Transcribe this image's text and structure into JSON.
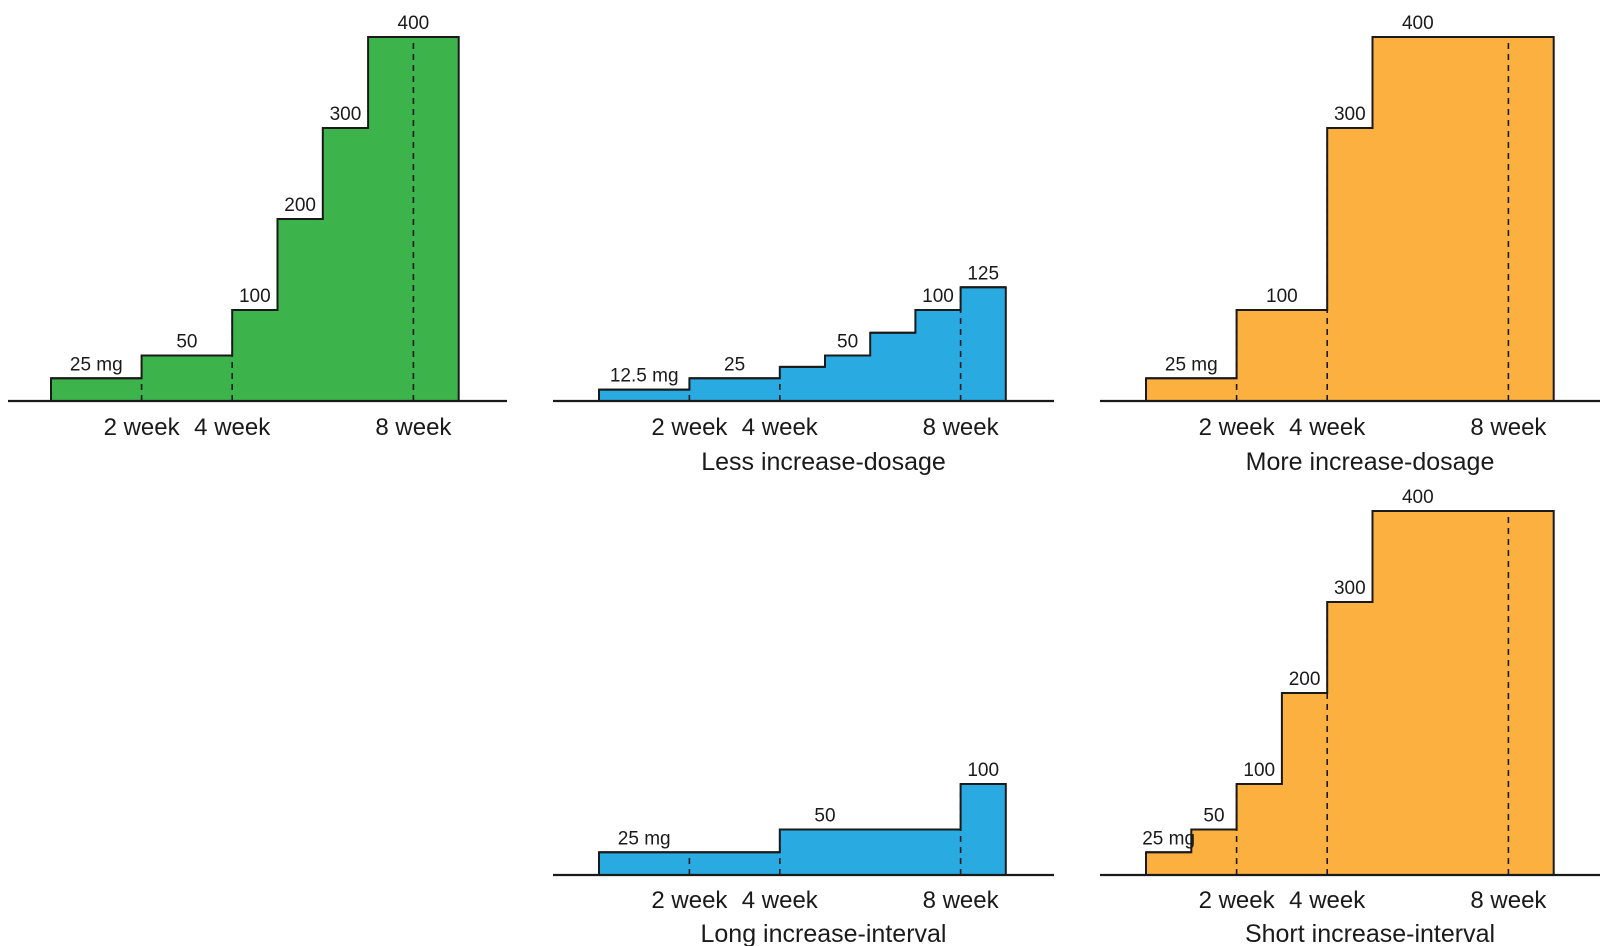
{
  "colors": {
    "green": "#3cb44b",
    "blue": "#29abe2",
    "orange": "#fbb040",
    "outline": "#1a1a1a"
  },
  "chart_data": [
    {
      "id": "reference",
      "type": "step-area",
      "title": "",
      "xlabel": "",
      "ylabel": "",
      "color": "#3cb44b",
      "ticks": [
        {
          "x": 2,
          "label": "2 week"
        },
        {
          "x": 4,
          "label": "4 week"
        },
        {
          "x": 8,
          "label": "8 week"
        }
      ],
      "xlim": [
        -1,
        10
      ],
      "ylim": [
        0,
        400
      ],
      "steps": [
        {
          "x0": 0,
          "x1": 2,
          "y": 25,
          "label": "25 mg"
        },
        {
          "x0": 2,
          "x1": 4,
          "y": 50,
          "label": "50"
        },
        {
          "x0": 4,
          "x1": 5,
          "y": 100,
          "label": "100"
        },
        {
          "x0": 5,
          "x1": 6,
          "y": 200,
          "label": "200"
        },
        {
          "x0": 6,
          "x1": 7,
          "y": 300,
          "label": "300"
        },
        {
          "x0": 7,
          "x1": 9,
          "y": 400,
          "label": "400"
        }
      ]
    },
    {
      "id": "less-dosage",
      "type": "step-area",
      "title": "Less increase-dosage",
      "xlabel": "",
      "ylabel": "",
      "color": "#29abe2",
      "ticks": [
        {
          "x": 2,
          "label": "2 week"
        },
        {
          "x": 4,
          "label": "4 week"
        },
        {
          "x": 8,
          "label": "8 week"
        }
      ],
      "xlim": [
        -1,
        10
      ],
      "ylim": [
        0,
        400
      ],
      "steps": [
        {
          "x0": 0,
          "x1": 2,
          "y": 12.5,
          "label": "12.5 mg"
        },
        {
          "x0": 2,
          "x1": 4,
          "y": 25,
          "label": "25"
        },
        {
          "x0": 4,
          "x1": 5,
          "y": 37.5,
          "label": ""
        },
        {
          "x0": 5,
          "x1": 6,
          "y": 50,
          "label": "50"
        },
        {
          "x0": 6,
          "x1": 7,
          "y": 75,
          "label": ""
        },
        {
          "x0": 7,
          "x1": 8,
          "y": 100,
          "label": "100"
        },
        {
          "x0": 8,
          "x1": 9,
          "y": 125,
          "label": "125"
        }
      ]
    },
    {
      "id": "more-dosage",
      "type": "step-area",
      "title": "More increase-dosage",
      "xlabel": "",
      "ylabel": "",
      "color": "#fbb040",
      "ticks": [
        {
          "x": 2,
          "label": "2 week"
        },
        {
          "x": 4,
          "label": "4 week"
        },
        {
          "x": 8,
          "label": "8 week"
        }
      ],
      "xlim": [
        -1,
        10
      ],
      "ylim": [
        0,
        400
      ],
      "steps": [
        {
          "x0": 0,
          "x1": 2,
          "y": 25,
          "label": "25 mg"
        },
        {
          "x0": 2,
          "x1": 4,
          "y": 100,
          "label": "100"
        },
        {
          "x0": 4,
          "x1": 5,
          "y": 300,
          "label": "300"
        },
        {
          "x0": 5,
          "x1": 9,
          "y": 400,
          "label": "400"
        }
      ]
    },
    {
      "id": "long-interval",
      "type": "step-area",
      "title": "Long increase-interval",
      "xlabel": "",
      "ylabel": "",
      "color": "#29abe2",
      "ticks": [
        {
          "x": 2,
          "label": "2 week"
        },
        {
          "x": 4,
          "label": "4 week"
        },
        {
          "x": 8,
          "label": "8 week"
        }
      ],
      "xlim": [
        -1,
        10
      ],
      "ylim": [
        0,
        400
      ],
      "steps": [
        {
          "x0": 0,
          "x1": 4,
          "y": 25,
          "label": "25 mg"
        },
        {
          "x0": 4,
          "x1": 8,
          "y": 50,
          "label": "50"
        },
        {
          "x0": 8,
          "x1": 9,
          "y": 100,
          "label": "100"
        }
      ]
    },
    {
      "id": "short-interval",
      "type": "step-area",
      "title": "Short increase-interval",
      "xlabel": "",
      "ylabel": "",
      "color": "#fbb040",
      "ticks": [
        {
          "x": 2,
          "label": "2 week"
        },
        {
          "x": 4,
          "label": "4 week"
        },
        {
          "x": 8,
          "label": "8 week"
        }
      ],
      "xlim": [
        -1,
        10
      ],
      "ylim": [
        0,
        400
      ],
      "steps": [
        {
          "x0": 0,
          "x1": 1,
          "y": 25,
          "label": "25 mg"
        },
        {
          "x0": 1,
          "x1": 2,
          "y": 50,
          "label": "50"
        },
        {
          "x0": 2,
          "x1": 3,
          "y": 100,
          "label": "100"
        },
        {
          "x0": 3,
          "x1": 4,
          "y": 200,
          "label": "200"
        },
        {
          "x0": 4,
          "x1": 5,
          "y": 300,
          "label": "300"
        },
        {
          "x0": 5,
          "x1": 9,
          "y": 400,
          "label": "400"
        }
      ]
    }
  ]
}
